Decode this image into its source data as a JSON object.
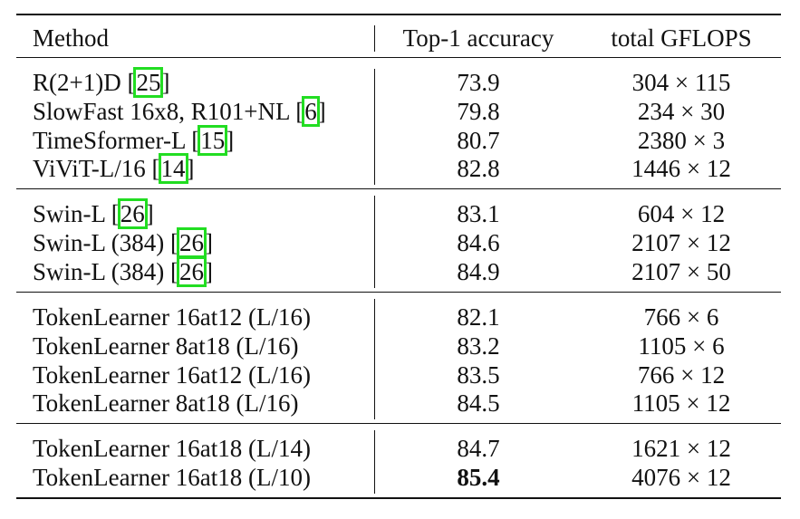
{
  "table": {
    "header": [
      "Method",
      "Top-1 accuracy",
      "total GFLOPS"
    ],
    "groups": [
      [
        [
          "R(2+1)D [25]",
          73.9,
          "304 × 115"
        ],
        [
          "SlowFast 16x8, R101+NL [6]",
          79.8,
          "234 × 30"
        ],
        [
          "TimeSformer-L [15]",
          80.7,
          "2380 × 3"
        ],
        [
          "ViViT-L/16 [14]",
          82.8,
          "1446 × 12"
        ]
      ],
      [
        [
          "Swin-L [26]",
          83.1,
          "604 × 12"
        ],
        [
          "Swin-L (384) [26]",
          84.6,
          "2107 × 12"
        ],
        [
          "Swin-L (384) [26]",
          84.9,
          "2107 × 50"
        ]
      ],
      [
        [
          "TokenLearner 16at12 (L/16)",
          82.1,
          "766 × 6"
        ],
        [
          "TokenLearner 8at18 (L/16)",
          83.2,
          "1105 × 6"
        ],
        [
          "TokenLearner 16at12 (L/16)",
          83.5,
          "766 × 12"
        ],
        [
          "TokenLearner 8at18 (L/16)",
          84.5,
          "1105 × 12"
        ]
      ],
      [
        [
          "TokenLearner 16at18 (L/14)",
          84.7,
          "1621 × 12"
        ],
        [
          "TokenLearner 16at18 (L/10)",
          85.4,
          "4076 × 12"
        ]
      ]
    ],
    "bold": [
      [
        3,
        1,
        1
      ]
    ]
  }
}
